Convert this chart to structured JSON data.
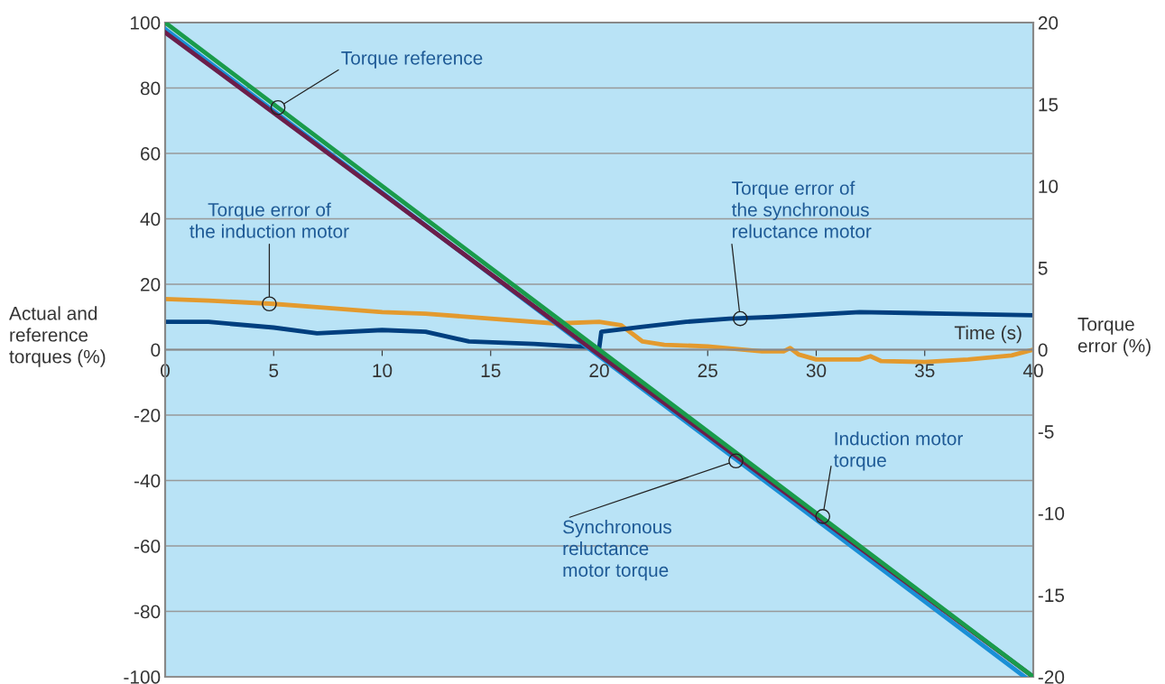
{
  "chart_data": {
    "type": "line",
    "xlabel": "Time (s)",
    "ylabel": "Actual and\nreference\ntorques (%)",
    "y2label": "Torque\nerror (%)",
    "xlim": [
      0,
      40
    ],
    "xticks": [
      0,
      5,
      10,
      15,
      20,
      25,
      30,
      35,
      40
    ],
    "ylim": [
      -100,
      100
    ],
    "yticks": [
      -100,
      -80,
      -60,
      -40,
      -20,
      0,
      20,
      40,
      60,
      80,
      100
    ],
    "y2lim": [
      -20,
      20
    ],
    "y2ticks": [
      -20,
      -15,
      -10,
      -5,
      0,
      5,
      10,
      15,
      20
    ],
    "grid": "y",
    "marker": "none",
    "line_style": "solid",
    "series": [
      {
        "color": "#e39a2e",
        "axis": "y2",
        "x": [
          0,
          2,
          5,
          7,
          10,
          12,
          15,
          18,
          20,
          21,
          22,
          23,
          25,
          27.5,
          28.5,
          28.8,
          29.2,
          30,
          32,
          32.5,
          33,
          35,
          37,
          39,
          40
        ],
        "values": [
          3.1,
          3.0,
          2.8,
          2.6,
          2.3,
          2.2,
          1.9,
          1.6,
          1.7,
          1.5,
          0.5,
          0.3,
          0.2,
          -0.1,
          -0.1,
          0.1,
          -0.3,
          -0.6,
          -0.6,
          -0.4,
          -0.7,
          -0.75,
          -0.6,
          -0.35,
          0
        ]
      },
      {
        "color": "#003f7f",
        "axis": "y2",
        "x": [
          0,
          2,
          5,
          7,
          10,
          12,
          14,
          17,
          19.5,
          20,
          20.1,
          22,
          24,
          26,
          28,
          32,
          36,
          40
        ],
        "values": [
          1.7,
          1.7,
          1.35,
          1.0,
          1.2,
          1.1,
          0.5,
          0.35,
          0.15,
          0.1,
          1.1,
          1.4,
          1.7,
          1.9,
          2.0,
          2.3,
          2.2,
          2.1
        ]
      },
      {
        "color": "#1a8fd6",
        "x": [
          0,
          39.6
        ],
        "values": [
          98,
          -100
        ]
      },
      {
        "color": "#6b1e4a",
        "x": [
          0,
          40
        ],
        "values": [
          97,
          -100
        ]
      },
      {
        "color": "#1a9b4b",
        "x": [
          0,
          40
        ],
        "values": [
          100,
          -100
        ]
      }
    ],
    "annotations": [
      {
        "text": "Torque reference",
        "x": 5.2,
        "y": 74
      },
      {
        "text": "Torque error of\nthe induction motor",
        "x": 4.8,
        "y": 14
      },
      {
        "text": "Torque error of\nthe synchronous\nreluctance motor",
        "x": 26.5,
        "y": 9.5
      },
      {
        "text": "Induction motor\ntorque",
        "x": 30.3,
        "y": -51
      },
      {
        "text": "Synchronous\nreluctance\nmotor torque",
        "x": 26.3,
        "y": -34
      }
    ]
  }
}
